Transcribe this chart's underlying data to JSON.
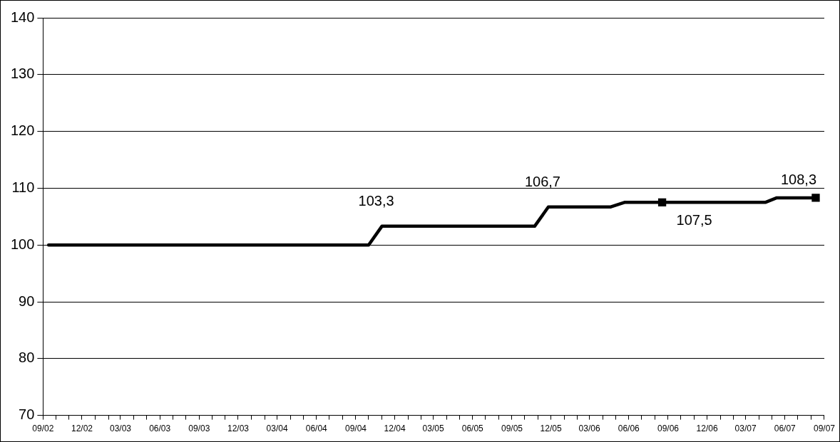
{
  "chart_data": {
    "type": "line",
    "x": [
      "2002-09-14",
      "2004-10-01",
      "2004-11-01",
      "2005-10-24",
      "2005-11-25",
      "2006-04-20",
      "2006-05-22",
      "2006-08-18",
      "2007-04-16",
      "2007-05-13",
      "2007-08-12"
    ],
    "series": [
      {
        "color": "#000000",
        "marker": "none",
        "values": [
          100,
          100,
          103.3,
          103.3,
          106.7,
          106.7,
          107.5,
          107.5,
          107.5,
          108.3,
          108.3
        ],
        "value_labels": [
          null,
          null,
          "103,3",
          null,
          "106,7",
          null,
          null,
          null,
          null,
          null,
          null
        ]
      },
      {
        "type": "scatter",
        "color": "#000000",
        "marker": "square",
        "x": [
          "2006-08-18",
          "2007-08-12"
        ],
        "values": [
          107.5,
          108.3
        ],
        "value_labels": [
          "107,5",
          "108,3"
        ]
      }
    ],
    "ylim": [
      70,
      140
    ],
    "yticks": [
      70,
      80,
      90,
      100,
      110,
      120,
      130,
      140
    ],
    "xlim": [
      "2002-09-01",
      "2007-09-01"
    ],
    "xticks": [
      {
        "value": "2002-09",
        "label": "09/02"
      },
      {
        "value": "2002-10",
        "label": null
      },
      {
        "value": "2002-11",
        "label": null
      },
      {
        "value": "2002-12",
        "label": "12/02"
      },
      {
        "value": "2003-01",
        "label": null
      },
      {
        "value": "2003-02",
        "label": null
      },
      {
        "value": "2003-03",
        "label": "03/03"
      },
      {
        "value": "2003-04",
        "label": null
      },
      {
        "value": "2003-05",
        "label": null
      },
      {
        "value": "2003-06",
        "label": "06/03"
      },
      {
        "value": "2003-07",
        "label": null
      },
      {
        "value": "2003-08",
        "label": null
      },
      {
        "value": "2003-09",
        "label": "09/03"
      },
      {
        "value": "2003-10",
        "label": null
      },
      {
        "value": "2003-11",
        "label": null
      },
      {
        "value": "2003-12",
        "label": "12/03"
      },
      {
        "value": "2004-01",
        "label": null
      },
      {
        "value": "2004-02",
        "label": null
      },
      {
        "value": "2004-03",
        "label": "03/04"
      },
      {
        "value": "2004-04",
        "label": null
      },
      {
        "value": "2004-05",
        "label": null
      },
      {
        "value": "2004-06",
        "label": "06/04"
      },
      {
        "value": "2004-07",
        "label": null
      },
      {
        "value": "2004-08",
        "label": null
      },
      {
        "value": "2004-09",
        "label": "09/04"
      },
      {
        "value": "2004-10",
        "label": null
      },
      {
        "value": "2004-11",
        "label": null
      },
      {
        "value": "2004-12",
        "label": "12/04"
      },
      {
        "value": "2005-01",
        "label": null
      },
      {
        "value": "2005-02",
        "label": null
      },
      {
        "value": "2005-03",
        "label": "03/05"
      },
      {
        "value": "2005-04",
        "label": null
      },
      {
        "value": "2005-05",
        "label": null
      },
      {
        "value": "2005-06",
        "label": "06/05"
      },
      {
        "value": "2005-07",
        "label": null
      },
      {
        "value": "2005-08",
        "label": null
      },
      {
        "value": "2005-09",
        "label": "09/05"
      },
      {
        "value": "2005-10",
        "label": null
      },
      {
        "value": "2005-11",
        "label": null
      },
      {
        "value": "2005-12",
        "label": "12/05"
      },
      {
        "value": "2006-01",
        "label": null
      },
      {
        "value": "2006-02",
        "label": null
      },
      {
        "value": "2006-03",
        "label": "03/06"
      },
      {
        "value": "2006-04",
        "label": null
      },
      {
        "value": "2006-05",
        "label": null
      },
      {
        "value": "2006-06",
        "label": "06/06"
      },
      {
        "value": "2006-07",
        "label": null
      },
      {
        "value": "2006-08",
        "label": null
      },
      {
        "value": "2006-09",
        "label": "09/06"
      },
      {
        "value": "2006-10",
        "label": null
      },
      {
        "value": "2006-11",
        "label": null
      },
      {
        "value": "2006-12",
        "label": "12/06"
      },
      {
        "value": "2007-01",
        "label": null
      },
      {
        "value": "2007-02",
        "label": null
      },
      {
        "value": "2007-03",
        "label": "03/07"
      },
      {
        "value": "2007-04",
        "label": null
      },
      {
        "value": "2007-05",
        "label": null
      },
      {
        "value": "2007-06",
        "label": "06/07"
      },
      {
        "value": "2007-07",
        "label": null
      },
      {
        "value": "2007-08",
        "label": null
      },
      {
        "value": "2007-09",
        "label": "09/07"
      }
    ],
    "grid": "y",
    "legend": false,
    "line_style": "solid"
  }
}
